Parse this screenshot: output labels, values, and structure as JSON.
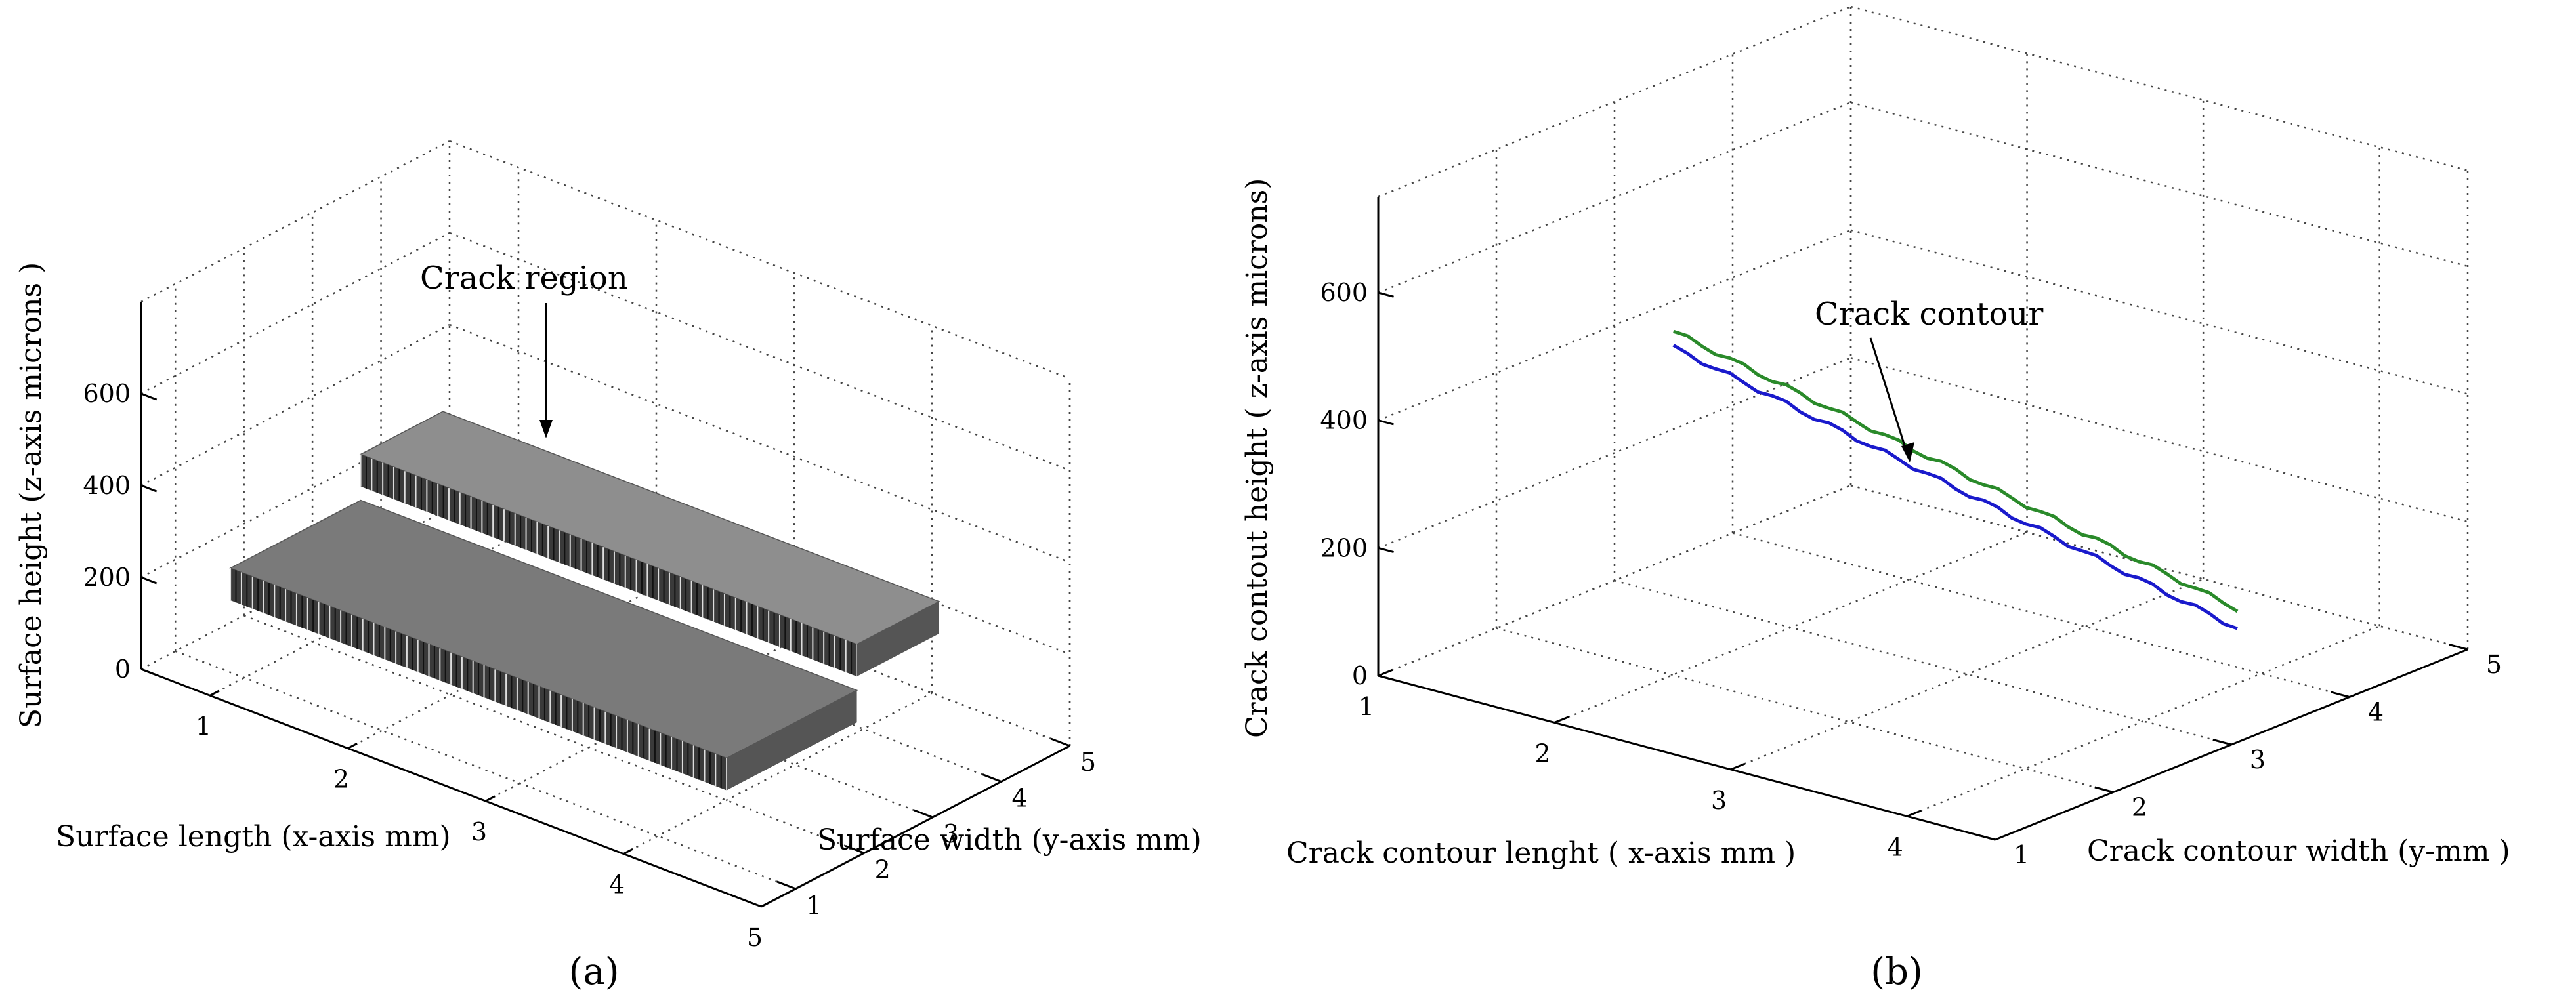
{
  "chart_data": [
    {
      "panel": "(a)",
      "type": "surface",
      "xlabel": "Surface length (x-axis mm)",
      "ylabel": "Surface width (y-axis mm)",
      "zlabel": "Surface height (z-axis microns )",
      "xticks": [
        "1",
        "2",
        "3",
        "4",
        "5"
      ],
      "yticks": [
        "1",
        "2",
        "3",
        "4",
        "5"
      ],
      "zticks": [
        "0",
        "200",
        "400",
        "600"
      ],
      "xlim": [
        0.5,
        5
      ],
      "ylim": [
        0.5,
        5
      ],
      "zlim": [
        0,
        800
      ],
      "grid": true,
      "surface_color": "#7a7a7a",
      "lower_step": {
        "x_range": [
          0.8,
          4.4
        ],
        "y_range": [
          1.2,
          3.1
        ],
        "z": 200
      },
      "upper_step": {
        "x_range": [
          0.8,
          4.4
        ],
        "y_range": [
          3.1,
          4.3
        ],
        "z": 300
      },
      "annotation": "Crack region"
    },
    {
      "panel": "(b)",
      "type": "line",
      "xlabel": "Crack contour lenght ( x-axis mm )",
      "ylabel": "Crack contour width (y-mm )",
      "zlabel": "Crack contout height ( z-axis microns)",
      "xticks": [
        "1",
        "2",
        "3",
        "4"
      ],
      "yticks": [
        "1",
        "2",
        "3",
        "4",
        "5"
      ],
      "zticks": [
        "0",
        "200",
        "400",
        "600"
      ],
      "xlim": [
        1,
        4.5
      ],
      "ylim": [
        1,
        5
      ],
      "zlim": [
        0,
        750
      ],
      "grid": true,
      "series": [
        {
          "color": "#2a8a2a",
          "x": [
            1.2,
            4.4
          ],
          "y": [
            3.2,
            3.2
          ],
          "z": [
            390,
            190
          ]
        },
        {
          "color": "#1a1acc",
          "x": [
            1.2,
            4.4
          ],
          "y": [
            3.2,
            3.2
          ],
          "z": [
            365,
            160
          ]
        }
      ],
      "annotation": "Crack contour"
    }
  ],
  "panel_labels": [
    "(a)",
    "(b)"
  ]
}
